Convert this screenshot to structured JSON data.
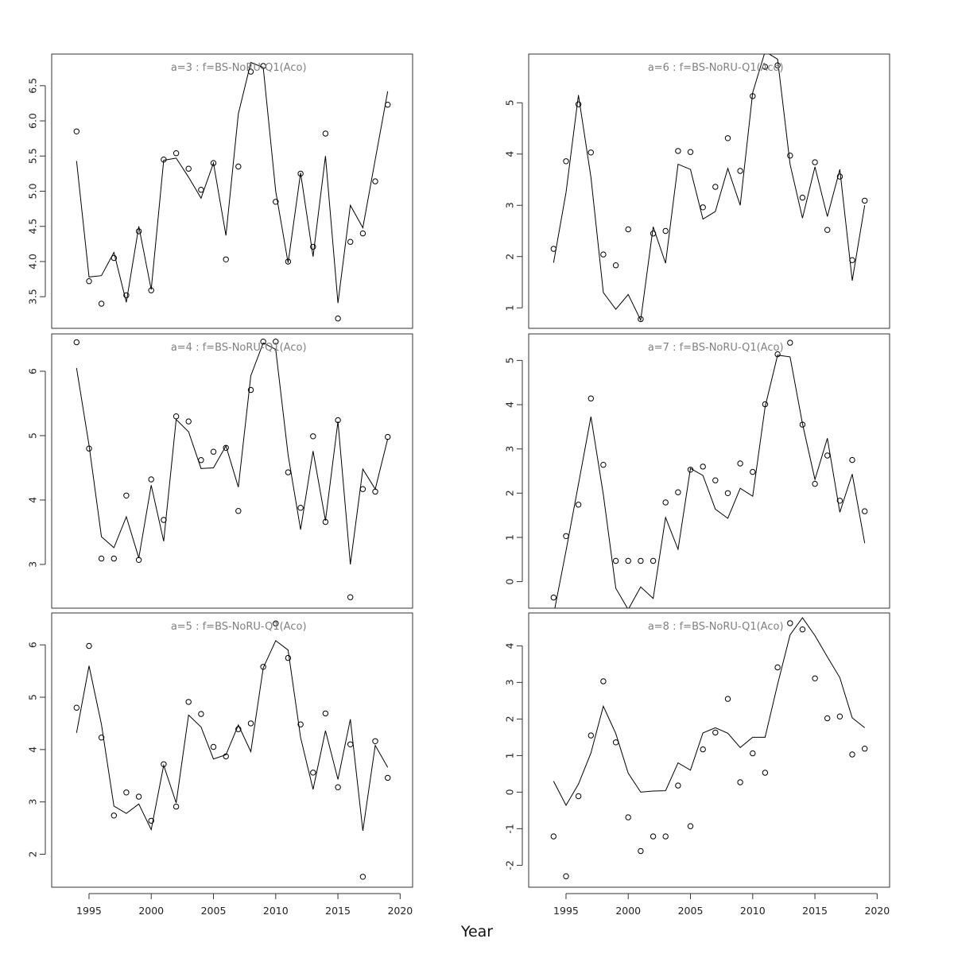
{
  "figure": {
    "xlabel": "Year"
  },
  "chart_data": [
    {
      "type": "line",
      "title": "a=3  :  f=BS-NoRU-Q1(Aco)",
      "xlim": [
        1992,
        2021
      ],
      "ylim": [
        3.05,
        6.95
      ],
      "x_ticks": [],
      "y_ticks": [
        3.5,
        4.0,
        4.5,
        5.0,
        5.5,
        6.0,
        6.5
      ],
      "series": [
        {
          "kind": "line",
          "x": [
            1994,
            1995,
            1996,
            1997,
            1998,
            1999,
            2000,
            2001,
            2002,
            2003,
            2004,
            2005,
            2006,
            2007,
            2008,
            2009,
            2010,
            2011,
            2012,
            2013,
            2014,
            2015,
            2016,
            2017,
            2018,
            2019
          ],
          "y": [
            5.43,
            3.78,
            3.8,
            4.13,
            3.42,
            4.5,
            3.6,
            5.44,
            5.47,
            5.2,
            4.9,
            5.4,
            4.37,
            6.1,
            6.83,
            6.76,
            5.0,
            3.98,
            5.26,
            4.07,
            5.5,
            3.41,
            4.8,
            4.48,
            5.45,
            6.42
          ]
        },
        {
          "kind": "points",
          "x": [
            1994,
            1995,
            1996,
            1997,
            1998,
            1999,
            2000,
            2001,
            2002,
            2003,
            2004,
            2005,
            2006,
            2007,
            2008,
            2009,
            2010,
            2011,
            2012,
            2013,
            2014,
            2015,
            2016,
            2017,
            2018,
            2019
          ],
          "y": [
            5.85,
            3.72,
            3.4,
            4.05,
            3.52,
            4.43,
            3.59,
            5.45,
            5.54,
            5.32,
            5.02,
            5.4,
            4.03,
            5.35,
            6.7,
            6.78,
            4.85,
            4.0,
            5.25,
            4.21,
            5.82,
            3.19,
            4.28,
            4.4,
            5.14,
            6.23
          ]
        }
      ]
    },
    {
      "type": "line",
      "title": "a=6  :  f=BS-NoRU-Q1(Aco)",
      "xlim": [
        1992,
        2021
      ],
      "ylim": [
        0.6,
        5.95
      ],
      "x_ticks": [],
      "y_ticks": [
        1,
        2,
        3,
        4,
        5
      ],
      "series": [
        {
          "kind": "line",
          "x": [
            1994,
            1995,
            1996,
            1997,
            1998,
            1999,
            2000,
            2001,
            2002,
            2003,
            2004,
            2005,
            2006,
            2007,
            2008,
            2009,
            2010,
            2011,
            2012,
            2013,
            2014,
            2015,
            2016,
            2017,
            2018,
            2019
          ],
          "y": [
            1.88,
            3.25,
            5.15,
            3.55,
            1.3,
            0.97,
            1.26,
            0.76,
            2.58,
            1.87,
            3.8,
            3.7,
            2.73,
            2.88,
            3.72,
            3.0,
            5.2,
            6.0,
            5.85,
            3.8,
            2.75,
            3.75,
            2.78,
            3.7,
            1.53,
            3.0
          ]
        },
        {
          "kind": "points",
          "x": [
            1994,
            1995,
            1996,
            1997,
            1998,
            1999,
            2000,
            2001,
            2002,
            2003,
            2004,
            2005,
            2006,
            2007,
            2008,
            2009,
            2010,
            2011,
            2012,
            2013,
            2014,
            2015,
            2016,
            2017,
            2018,
            2019
          ],
          "y": [
            2.15,
            3.86,
            4.97,
            4.03,
            2.04,
            1.83,
            2.53,
            0.78,
            2.45,
            2.5,
            4.06,
            4.04,
            2.96,
            3.36,
            4.31,
            3.67,
            5.13,
            5.7,
            5.73,
            3.97,
            3.15,
            3.84,
            2.52,
            3.56,
            1.93,
            3.09
          ]
        }
      ]
    },
    {
      "type": "line",
      "title": "a=4  :  f=BS-NoRU-Q1(Aco)",
      "xlim": [
        1992,
        2021
      ],
      "ylim": [
        2.32,
        6.58
      ],
      "x_ticks": [],
      "y_ticks": [
        3,
        4,
        5,
        6
      ],
      "series": [
        {
          "kind": "line",
          "x": [
            1994,
            1995,
            1996,
            1997,
            1998,
            1999,
            2000,
            2001,
            2002,
            2003,
            2004,
            2005,
            2006,
            2007,
            2008,
            2009,
            2010,
            2011,
            2012,
            2013,
            2014,
            2015,
            2016,
            2017,
            2018,
            2019
          ],
          "y": [
            6.05,
            4.85,
            3.43,
            3.26,
            3.74,
            3.1,
            4.23,
            3.36,
            5.25,
            5.06,
            4.49,
            4.5,
            4.84,
            4.2,
            5.93,
            6.44,
            6.34,
            4.7,
            3.54,
            4.76,
            3.68,
            5.22,
            3.0,
            4.48,
            4.17,
            4.95
          ]
        },
        {
          "kind": "points",
          "x": [
            1994,
            1995,
            1996,
            1997,
            1998,
            1999,
            2000,
            2001,
            2002,
            2003,
            2004,
            2005,
            2006,
            2007,
            2008,
            2009,
            2010,
            2011,
            2012,
            2013,
            2014,
            2015,
            2016,
            2017,
            2018,
            2019
          ],
          "y": [
            6.45,
            4.8,
            3.09,
            3.09,
            4.07,
            3.07,
            4.32,
            3.69,
            5.3,
            5.22,
            4.62,
            4.75,
            4.81,
            3.83,
            5.71,
            6.46,
            6.46,
            4.43,
            3.88,
            4.99,
            3.66,
            5.24,
            2.49,
            4.17,
            4.13,
            4.98
          ]
        }
      ]
    },
    {
      "type": "line",
      "title": "a=7  :  f=BS-NoRU-Q1(Aco)",
      "xlim": [
        1992,
        2021
      ],
      "ylim": [
        -0.6,
        5.6
      ],
      "x_ticks": [],
      "y_ticks": [
        0,
        1,
        2,
        3,
        4,
        5
      ],
      "series": [
        {
          "kind": "line",
          "x": [
            1994,
            1995,
            1996,
            1997,
            1998,
            1999,
            2000,
            2001,
            2002,
            2003,
            2004,
            2005,
            2006,
            2007,
            2008,
            2009,
            2010,
            2011,
            2012,
            2013,
            2014,
            2015,
            2016,
            2017,
            2018,
            2019
          ],
          "y": [
            -0.75,
            0.7,
            2.2,
            3.73,
            1.97,
            -0.15,
            -0.63,
            -0.12,
            -0.38,
            1.45,
            0.73,
            2.56,
            2.4,
            1.64,
            1.43,
            2.11,
            1.93,
            3.95,
            5.12,
            5.08,
            3.57,
            2.31,
            3.24,
            1.57,
            2.43,
            0.87
          ]
        },
        {
          "kind": "points",
          "x": [
            1994,
            1995,
            1996,
            1997,
            1998,
            1999,
            2000,
            2001,
            2002,
            2003,
            2004,
            2005,
            2006,
            2007,
            2008,
            2009,
            2010,
            2011,
            2012,
            2013,
            2014,
            2015,
            2016,
            2017,
            2018,
            2019
          ],
          "y": [
            -0.36,
            1.03,
            1.74,
            4.14,
            2.64,
            0.47,
            0.47,
            0.47,
            0.47,
            1.79,
            2.02,
            2.53,
            2.6,
            2.29,
            2.0,
            2.67,
            2.48,
            4.01,
            5.14,
            5.4,
            3.55,
            2.21,
            2.85,
            1.83,
            2.75,
            1.59
          ]
        }
      ]
    },
    {
      "type": "line",
      "title": "a=5  :  f=BS-NoRU-Q1(Aco)",
      "xlim": [
        1992,
        2021
      ],
      "ylim": [
        1.37,
        6.61
      ],
      "x_ticks": [
        1995,
        2000,
        2005,
        2010,
        2015,
        2020
      ],
      "y_ticks": [
        2,
        3,
        4,
        5,
        6
      ],
      "series": [
        {
          "kind": "line",
          "x": [
            1994,
            1995,
            1996,
            1997,
            1998,
            1999,
            2000,
            2001,
            2002,
            2003,
            2004,
            2005,
            2006,
            2007,
            2008,
            2009,
            2010,
            2011,
            2012,
            2013,
            2014,
            2015,
            2016,
            2017,
            2018,
            2019
          ],
          "y": [
            4.32,
            5.6,
            4.48,
            2.92,
            2.78,
            2.96,
            2.47,
            3.7,
            2.98,
            4.66,
            4.43,
            3.82,
            3.9,
            4.47,
            3.96,
            5.56,
            6.08,
            5.9,
            4.23,
            3.24,
            4.36,
            3.43,
            4.58,
            2.45,
            4.08,
            3.66
          ]
        },
        {
          "kind": "points",
          "x": [
            1994,
            1995,
            1996,
            1997,
            1998,
            1999,
            2000,
            2001,
            2002,
            2003,
            2004,
            2005,
            2006,
            2007,
            2008,
            2009,
            2010,
            2011,
            2012,
            2013,
            2014,
            2015,
            2016,
            2017,
            2018,
            2019
          ],
          "y": [
            4.8,
            5.98,
            4.23,
            2.74,
            3.18,
            3.1,
            2.64,
            3.72,
            2.91,
            4.91,
            4.68,
            4.05,
            3.87,
            4.39,
            4.5,
            5.58,
            6.41,
            5.75,
            4.48,
            3.56,
            4.69,
            3.28,
            4.1,
            1.57,
            4.16,
            3.46
          ]
        }
      ]
    },
    {
      "type": "line",
      "title": "a=8  :  f=BS-NoRU-Q1(Aco)",
      "xlim": [
        1992,
        2021
      ],
      "ylim": [
        -2.6,
        4.9
      ],
      "x_ticks": [
        1995,
        2000,
        2005,
        2010,
        2015,
        2020
      ],
      "y_ticks": [
        -2,
        -1,
        0,
        1,
        2,
        3,
        4
      ],
      "series": [
        {
          "kind": "line",
          "x": [
            1994,
            1995,
            1996,
            1997,
            1998,
            1999,
            2000,
            2001,
            2002,
            2003,
            2004,
            2005,
            2006,
            2007,
            2008,
            2009,
            2010,
            2011,
            2012,
            2013,
            2014,
            2015,
            2016,
            2017,
            2018,
            2019
          ],
          "y": [
            0.3,
            -0.36,
            0.22,
            1.07,
            2.35,
            1.6,
            0.52,
            0.0,
            0.03,
            0.04,
            0.8,
            0.6,
            1.62,
            1.76,
            1.61,
            1.22,
            1.5,
            1.5,
            2.95,
            4.3,
            4.77,
            4.28,
            3.7,
            3.13,
            2.03,
            1.76
          ]
        },
        {
          "kind": "points",
          "x": [
            1994,
            1995,
            1996,
            1997,
            1998,
            1999,
            2000,
            2001,
            2002,
            2003,
            2004,
            2005,
            2006,
            2007,
            2008,
            2009,
            2010,
            2011,
            2012,
            2013,
            2014,
            2015,
            2016,
            2017,
            2018,
            2019
          ],
          "y": [
            -1.21,
            -2.3,
            -0.11,
            1.55,
            3.03,
            1.36,
            -0.69,
            -1.61,
            -1.21,
            -1.21,
            0.18,
            -0.93,
            1.17,
            1.63,
            2.55,
            0.27,
            1.06,
            0.53,
            3.41,
            4.62,
            4.45,
            3.11,
            2.02,
            2.07,
            1.03,
            1.19
          ]
        }
      ]
    }
  ]
}
